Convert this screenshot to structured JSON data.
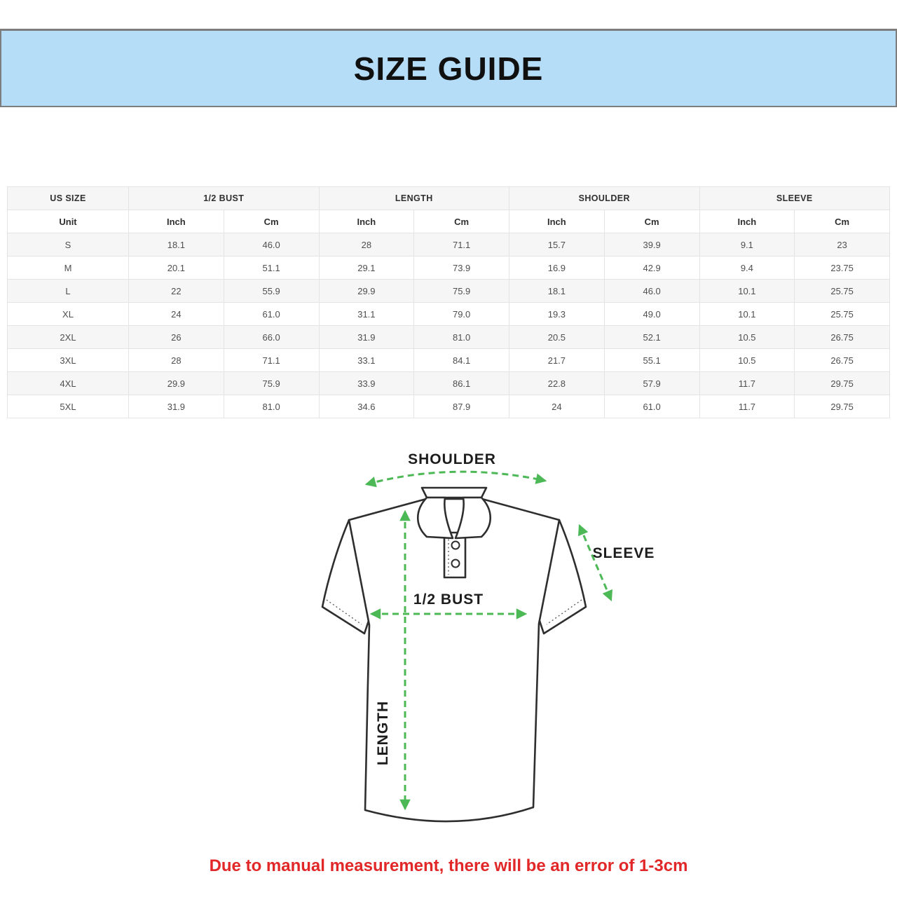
{
  "banner": {
    "title": "SIZE GUIDE",
    "bg_color": "#b5ddf7",
    "border_color": "#7d7d7d"
  },
  "table": {
    "group_headers": [
      "US SIZE",
      "1/2 BUST",
      "LENGTH",
      "SHOULDER",
      "SLEEVE"
    ],
    "units": {
      "label": "Unit",
      "inch": "Inch",
      "cm": "Cm"
    },
    "rows": [
      {
        "size": "S",
        "values": [
          "18.1",
          "46.0",
          "28",
          "71.1",
          "15.7",
          "39.9",
          "9.1",
          "23"
        ]
      },
      {
        "size": "M",
        "values": [
          "20.1",
          "51.1",
          "29.1",
          "73.9",
          "16.9",
          "42.9",
          "9.4",
          "23.75"
        ]
      },
      {
        "size": "L",
        "values": [
          "22",
          "55.9",
          "29.9",
          "75.9",
          "18.1",
          "46.0",
          "10.1",
          "25.75"
        ]
      },
      {
        "size": "XL",
        "values": [
          "24",
          "61.0",
          "31.1",
          "79.0",
          "19.3",
          "49.0",
          "10.1",
          "25.75"
        ]
      },
      {
        "size": "2XL",
        "values": [
          "26",
          "66.0",
          "31.9",
          "81.0",
          "20.5",
          "52.1",
          "10.5",
          "26.75"
        ]
      },
      {
        "size": "3XL",
        "values": [
          "28",
          "71.1",
          "33.1",
          "84.1",
          "21.7",
          "55.1",
          "10.5",
          "26.75"
        ]
      },
      {
        "size": "4XL",
        "values": [
          "29.9",
          "75.9",
          "33.9",
          "86.1",
          "22.8",
          "57.9",
          "11.7",
          "29.75"
        ]
      },
      {
        "size": "5XL",
        "values": [
          "31.9",
          "81.0",
          "34.6",
          "87.9",
          "24",
          "61.0",
          "11.7",
          "29.75"
        ]
      }
    ]
  },
  "diagram": {
    "arrow_color": "#4db856",
    "outline_color": "#2e2e2e",
    "labels": {
      "shoulder": "SHOULDER",
      "sleeve": "SLEEVE",
      "bust": "1/2 BUST",
      "length": "LENGTH"
    }
  },
  "note": {
    "text": "Due to manual measurement, there will be an error of 1-3cm",
    "color": "#e12727"
  }
}
